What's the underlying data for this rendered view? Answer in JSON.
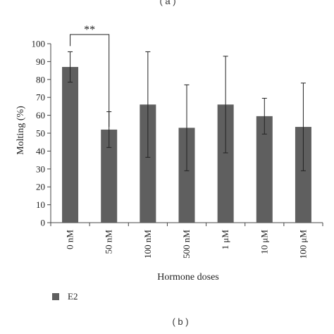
{
  "panel_labels": {
    "top": "( a )",
    "bottom": "( b )"
  },
  "chart_data": {
    "type": "bar",
    "title": "",
    "xlabel": "Hormone doses",
    "ylabel": "Molting (%)",
    "ylim": [
      0,
      100
    ],
    "yticks": [
      0,
      10,
      20,
      30,
      40,
      50,
      60,
      70,
      80,
      90,
      100
    ],
    "categories": [
      "0 nM",
      "50 nM",
      "100 nM",
      "500 nM",
      "1 μM",
      "10 μM",
      "100 μM"
    ],
    "series": [
      {
        "name": "E2",
        "color": "#5f5f5f",
        "values": [
          87,
          52,
          66,
          53,
          66,
          59.5,
          53.5
        ],
        "errors": [
          8.5,
          10,
          29.5,
          24,
          27,
          10,
          24.5
        ]
      }
    ],
    "significance": {
      "label": "**",
      "between": [
        0,
        1
      ]
    },
    "legend": {
      "position": "bottom-left",
      "entries": [
        "E2"
      ]
    },
    "grid": false
  }
}
